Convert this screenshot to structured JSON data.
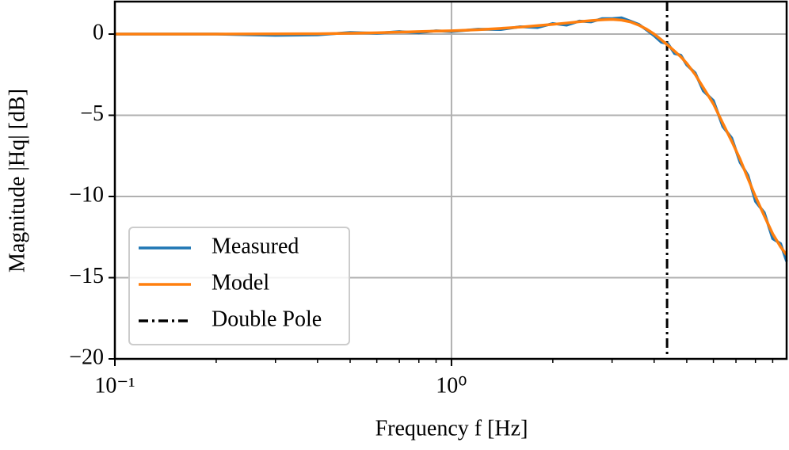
{
  "chart_data": {
    "type": "line",
    "xlabel": "Frequency f [Hz]",
    "ylabel": "Magnitude |Hq| [dB]",
    "x": [
      0.1,
      0.15,
      0.2,
      0.3,
      0.4,
      0.5,
      0.6,
      0.7,
      0.8,
      0.9,
      1.0,
      1.2,
      1.4,
      1.6,
      1.8,
      2.0,
      2.2,
      2.4,
      2.6,
      2.8,
      3.0,
      3.2,
      3.4,
      3.6,
      3.8,
      4.0,
      4.2,
      4.4,
      4.6,
      4.8,
      5.0,
      5.3,
      5.6,
      6.0,
      6.4,
      6.8,
      7.2,
      7.6,
      8.0,
      8.5,
      9.0,
      9.5,
      9.9
    ],
    "series": [
      {
        "name": "Measured",
        "color": "#1f77b4",
        "values": [
          0,
          0,
          0,
          -0.08,
          -0.05,
          0.1,
          0.05,
          0.15,
          0.08,
          0.2,
          0.15,
          0.3,
          0.28,
          0.45,
          0.4,
          0.65,
          0.55,
          0.8,
          0.75,
          0.95,
          0.95,
          1.0,
          0.8,
          0.6,
          0.25,
          -0.1,
          -0.5,
          -0.6,
          -1.2,
          -1.3,
          -1.9,
          -2.4,
          -3.5,
          -4.1,
          -5.7,
          -6.4,
          -7.9,
          -8.7,
          -10.3,
          -11.0,
          -12.6,
          -12.9,
          -14.0
        ]
      },
      {
        "name": "Model",
        "color": "#ff7f0e",
        "values": [
          0,
          0,
          0,
          0.01,
          0.02,
          0.05,
          0.08,
          0.12,
          0.15,
          0.18,
          0.2,
          0.27,
          0.35,
          0.43,
          0.52,
          0.6,
          0.68,
          0.76,
          0.83,
          0.88,
          0.9,
          0.86,
          0.75,
          0.55,
          0.3,
          0,
          -0.35,
          -0.7,
          -1.05,
          -1.4,
          -1.8,
          -2.5,
          -3.3,
          -4.3,
          -5.5,
          -6.6,
          -7.7,
          -8.9,
          -10.0,
          -11.2,
          -12.3,
          -13.1,
          -13.6
        ]
      }
    ],
    "vlines": [
      {
        "name": "Double Pole",
        "x": 4.37,
        "color": "#000000",
        "style": "dashdot"
      }
    ],
    "xscale": "log",
    "xlim": [
      0.1,
      9.9
    ],
    "xticks": [
      {
        "value": 0.1,
        "label": "10⁻¹"
      },
      {
        "value": 1,
        "label": "10⁰"
      }
    ],
    "xminorticks": [
      0.2,
      0.3,
      0.4,
      0.5,
      0.6,
      0.7,
      0.8,
      0.9,
      2,
      3,
      4,
      5,
      6,
      7,
      8,
      9
    ],
    "ylim": [
      -20,
      2
    ],
    "yticks": [
      0,
      {
        "value": -5,
        "label": "−5"
      },
      {
        "value": -10,
        "label": "−10"
      },
      {
        "value": -15,
        "label": "−15"
      },
      {
        "value": -20,
        "label": "−20"
      }
    ],
    "grid": true,
    "legend": "lower left"
  }
}
